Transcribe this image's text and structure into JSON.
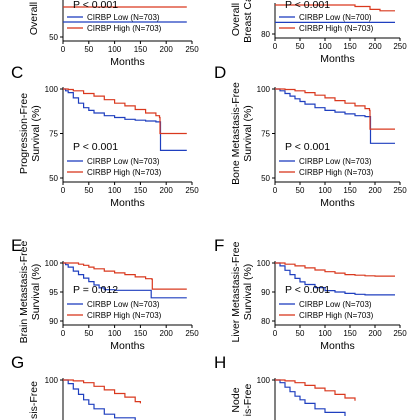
{
  "colors": {
    "low": "#1f3fbf",
    "high": "#d9381e",
    "axis": "#000000"
  },
  "chart_data": [
    {
      "id": "A",
      "panel_label": "",
      "type": "line",
      "ylabel": "Overall",
      "xlabel": "Months",
      "xticks": [
        0,
        50,
        100,
        150,
        200,
        250
      ],
      "xlim": [
        0,
        250
      ],
      "yticks": [
        50
      ],
      "ylim": [
        50,
        100
      ],
      "pvalue": "P < 0.001",
      "legend_position": "bottom-left",
      "series": [
        {
          "name": "CIRBP Low (N=703)",
          "color_key": "low",
          "x": [
            0,
            200,
            240
          ],
          "y": [
            60,
            60,
            60
          ]
        },
        {
          "name": "CIRBP High (N=703)",
          "color_key": "high",
          "x": [
            0,
            200,
            240
          ],
          "y": [
            70,
            70,
            70
          ]
        }
      ]
    },
    {
      "id": "B",
      "panel_label": "",
      "type": "line",
      "ylabel": "Overall",
      "ylabel2": "Breast Ca",
      "xlabel": "Months",
      "xticks": [
        0,
        50,
        100,
        150,
        200,
        250
      ],
      "xlim": [
        0,
        250
      ],
      "yticks": [
        80
      ],
      "ylim": [
        80,
        100
      ],
      "pvalue": "P < 0.001",
      "legend_position": "bottom-left",
      "series": [
        {
          "name": "CIRBP Low (N=700)",
          "color_key": "low",
          "x": [
            0,
            200,
            240
          ],
          "y": [
            88,
            88,
            88
          ]
        },
        {
          "name": "CIRBP High (N=703)",
          "color_key": "high",
          "x": [
            0,
            150,
            160,
            180,
            190,
            200,
            210,
            240
          ],
          "y": [
            100,
            100,
            99,
            99,
            97,
            97,
            96,
            96
          ]
        }
      ]
    },
    {
      "id": "C",
      "panel_label": "C",
      "type": "line",
      "ylabel": "Progression-Free",
      "ylabel2": "Survival (%)",
      "xlabel": "Months",
      "xticks": [
        0,
        50,
        100,
        150,
        200,
        250
      ],
      "xlim": [
        0,
        250
      ],
      "yticks": [
        50,
        75,
        100
      ],
      "ylim": [
        50,
        100
      ],
      "pvalue": "P < 0.001",
      "legend_position": "bottom-left",
      "series": [
        {
          "name": "CIRBP Low (N=703)",
          "color_key": "low",
          "x": [
            0,
            5,
            10,
            20,
            30,
            40,
            50,
            60,
            80,
            100,
            120,
            140,
            160,
            180,
            188,
            189,
            240
          ],
          "y": [
            100,
            99,
            98,
            95,
            92,
            89.5,
            88,
            86.5,
            85,
            84,
            83,
            82.5,
            82,
            81.5,
            81.5,
            65.5,
            65.5
          ]
        },
        {
          "name": "CIRBP High (N=703)",
          "color_key": "high",
          "x": [
            0,
            10,
            20,
            40,
            60,
            80,
            100,
            120,
            140,
            160,
            180,
            187,
            188,
            240
          ],
          "y": [
            100,
            99.7,
            99,
            97.5,
            96,
            94,
            92,
            90.5,
            88.5,
            86.5,
            85,
            84,
            75,
            75
          ]
        }
      ]
    },
    {
      "id": "D",
      "panel_label": "D",
      "type": "line",
      "ylabel": "Bone Metastasis-Free",
      "ylabel2": "Survival (%)",
      "xlabel": "Months",
      "xticks": [
        0,
        50,
        100,
        150,
        200,
        250
      ],
      "xlim": [
        0,
        250
      ],
      "yticks": [
        50,
        75,
        100
      ],
      "ylim": [
        50,
        100
      ],
      "pvalue": "P < 0.001",
      "legend_position": "bottom-left",
      "series": [
        {
          "name": "CIRBP Low (N=703)",
          "color_key": "low",
          "x": [
            0,
            10,
            20,
            30,
            40,
            50,
            60,
            80,
            100,
            120,
            140,
            160,
            180,
            190,
            191,
            240
          ],
          "y": [
            100,
            99,
            97.5,
            96,
            94.5,
            93,
            91.5,
            89.5,
            88,
            87,
            86,
            85,
            84.5,
            84.5,
            69.5,
            69.5
          ]
        },
        {
          "name": "CIRBP High (N=703)",
          "color_key": "high",
          "x": [
            0,
            20,
            40,
            60,
            80,
            100,
            120,
            140,
            160,
            180,
            189,
            190,
            240
          ],
          "y": [
            100,
            99.7,
            99,
            98,
            96.5,
            95,
            93.5,
            92,
            90.5,
            89,
            88,
            77.5,
            77.5
          ]
        }
      ]
    },
    {
      "id": "E",
      "panel_label": "E",
      "type": "line",
      "ylabel": "Brain Metastasis-Free",
      "ylabel2": "Survival (%)",
      "xlabel": "Months",
      "xticks": [
        0,
        50,
        100,
        150,
        200,
        250
      ],
      "xlim": [
        0,
        250
      ],
      "yticks": [
        90,
        95,
        100
      ],
      "ylim": [
        90,
        100
      ],
      "pvalue": "P = 0.012",
      "legend_position": "bottom-left",
      "series": [
        {
          "name": "CIRBP Low (N=703)",
          "color_key": "low",
          "x": [
            0,
            5,
            10,
            20,
            30,
            40,
            50,
            60,
            70,
            80,
            100,
            120,
            150,
            170,
            171,
            240
          ],
          "y": [
            100,
            99.7,
            99.3,
            98.6,
            98,
            97.4,
            96.8,
            96.2,
            95.7,
            95.4,
            95.3,
            95.3,
            95.3,
            95.3,
            94,
            94
          ]
        },
        {
          "name": "CIRBP High (N=703)",
          "color_key": "high",
          "x": [
            0,
            20,
            30,
            40,
            50,
            60,
            80,
            100,
            120,
            140,
            160,
            172,
            173,
            240
          ],
          "y": [
            100,
            100,
            99.8,
            99.6,
            99.3,
            99,
            98.6,
            98.3,
            98,
            97.6,
            97.3,
            97.2,
            95.5,
            95.5
          ]
        }
      ]
    },
    {
      "id": "F",
      "panel_label": "F",
      "type": "line",
      "ylabel": "Liver Metastasis-Free",
      "ylabel2": "Survival (%)",
      "xlabel": "Months",
      "xticks": [
        0,
        50,
        100,
        150,
        200,
        250
      ],
      "xlim": [
        0,
        250
      ],
      "yticks": [
        80,
        90,
        100
      ],
      "ylim": [
        80,
        100
      ],
      "pvalue": "P < 0.001",
      "legend_position": "bottom-left",
      "series": [
        {
          "name": "CIRBP Low (N=703)",
          "color_key": "low",
          "x": [
            0,
            10,
            20,
            30,
            40,
            50,
            60,
            80,
            100,
            120,
            140,
            160,
            180,
            200,
            240
          ],
          "y": [
            100,
            99,
            97.5,
            96,
            94.7,
            93.5,
            92.6,
            91.5,
            90.5,
            90,
            89.5,
            89.2,
            89,
            89,
            89
          ]
        },
        {
          "name": "CIRBP High (N=703)",
          "color_key": "high",
          "x": [
            0,
            20,
            40,
            60,
            80,
            100,
            120,
            140,
            160,
            180,
            200,
            240
          ],
          "y": [
            100,
            99.6,
            99,
            98.3,
            97.6,
            97,
            96.5,
            96,
            95.8,
            95.6,
            95.5,
            95.5
          ]
        }
      ]
    },
    {
      "id": "G",
      "panel_label": "G",
      "type": "line",
      "ylabel": "sis-Free",
      "xlabel": "",
      "xticks": [],
      "xlim": [
        0,
        250
      ],
      "yticks": [
        100
      ],
      "ylim": [
        50,
        100
      ],
      "pvalue": "",
      "legend_position": "",
      "series": [
        {
          "name": "",
          "color_key": "low",
          "x": [
            0,
            10,
            20,
            30,
            40,
            50,
            60,
            80,
            100,
            140
          ],
          "y": [
            100,
            98,
            95,
            92,
            89,
            86.5,
            84,
            81,
            79,
            77
          ]
        },
        {
          "name": "",
          "color_key": "high",
          "x": [
            0,
            20,
            40,
            60,
            80,
            100,
            120,
            140,
            150
          ],
          "y": [
            100,
            99.5,
            98.5,
            96.5,
            94.5,
            92.5,
            90.5,
            88,
            87
          ]
        }
      ]
    },
    {
      "id": "H",
      "panel_label": "H",
      "type": "line",
      "ylabel": "Node",
      "ylabel2": "is-Free",
      "xlabel": "",
      "xticks": [],
      "xlim": [
        0,
        250
      ],
      "yticks": [
        100
      ],
      "ylim": [
        50,
        100
      ],
      "pvalue": "",
      "legend_position": "",
      "series": [
        {
          "name": "",
          "color_key": "low",
          "x": [
            0,
            10,
            20,
            30,
            40,
            50,
            60,
            80,
            100,
            140
          ],
          "y": [
            100,
            98.5,
            96,
            93.5,
            91,
            89,
            87,
            84,
            82,
            80
          ]
        },
        {
          "name": "",
          "color_key": "high",
          "x": [
            0,
            20,
            40,
            60,
            80,
            100,
            120,
            140,
            160
          ],
          "y": [
            100,
            99.5,
            98.5,
            97,
            95.5,
            94,
            92,
            90,
            88.5
          ]
        }
      ]
    }
  ]
}
